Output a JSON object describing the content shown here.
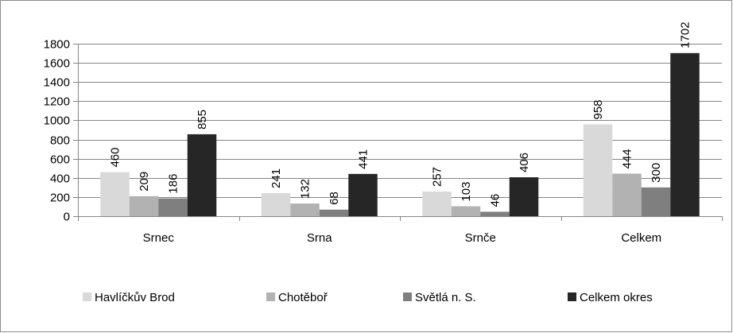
{
  "chart_data": {
    "type": "bar",
    "title": "",
    "xlabel": "",
    "ylabel": "",
    "categories": [
      "Srnec",
      "Srna",
      "Srnče",
      "Celkem"
    ],
    "series": [
      {
        "name": "Havlíčkův Brod",
        "color": "#d9d9d9",
        "values": [
          460,
          241,
          257,
          958
        ]
      },
      {
        "name": "Chotěboř",
        "color": "#b2b2b2",
        "values": [
          209,
          132,
          103,
          444
        ]
      },
      {
        "name": "Světlá n. S.",
        "color": "#7f7f7f",
        "values": [
          186,
          68,
          46,
          300
        ]
      },
      {
        "name": "Celkem okres",
        "color": "#262626",
        "values": [
          855,
          441,
          406,
          1702
        ]
      }
    ],
    "ylim": [
      0,
      1800
    ],
    "yticks": [
      0,
      200,
      400,
      600,
      800,
      1000,
      1200,
      1400,
      1600,
      1800
    ],
    "grid": true,
    "data_labels": "rotated-vertical",
    "legend_position": "bottom"
  }
}
